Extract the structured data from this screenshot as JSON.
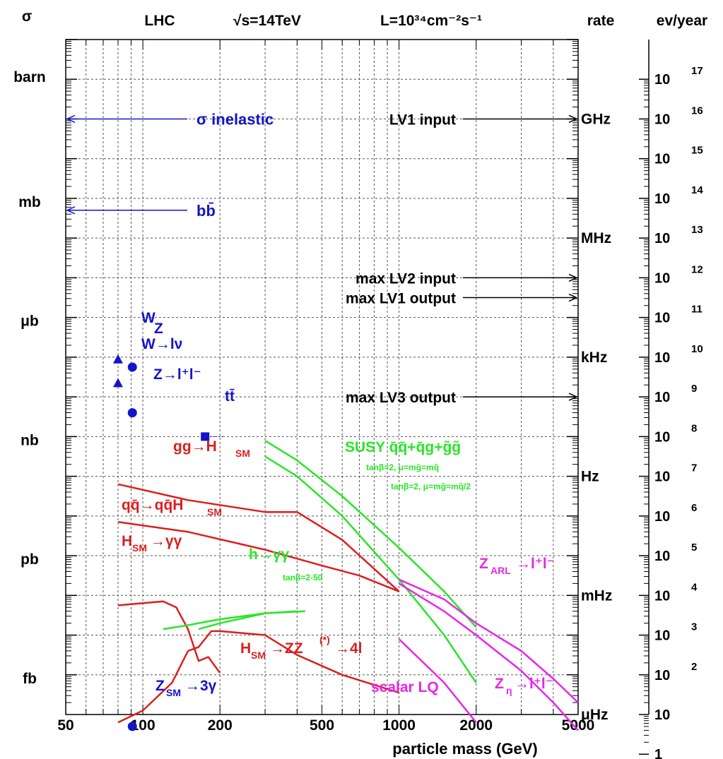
{
  "chart_data": {
    "type": "line",
    "x_scale": "log",
    "y_scale": "log",
    "xlim": [
      50,
      5000
    ],
    "ylim_decades": [
      -16,
      1
    ],
    "grid": true,
    "header": {
      "sigma": "σ",
      "lhc": "LHC",
      "sqrts": "√s=14TeV",
      "lumi": "L=10³⁴cm⁻²s⁻¹",
      "rate": "rate",
      "evyear": "ev/year"
    },
    "xlabel": "particle mass (GeV)",
    "x_ticks": [
      {
        "value": 50,
        "label": "50"
      },
      {
        "value": 100,
        "label": "100"
      },
      {
        "value": 200,
        "label": "200"
      },
      {
        "value": 500,
        "label": "500"
      },
      {
        "value": 1000,
        "label": "1000"
      },
      {
        "value": 2000,
        "label": "2000"
      },
      {
        "value": 5000,
        "label": "5000"
      }
    ],
    "y_left_labels": [
      {
        "decade": 0,
        "label": "barn"
      },
      {
        "decade": -3,
        "label": "mb"
      },
      {
        "decade": -6,
        "label": "μb"
      },
      {
        "decade": -9,
        "label": "nb"
      },
      {
        "decade": -12,
        "label": "pb"
      },
      {
        "decade": -15,
        "label": "fb"
      }
    ],
    "rate_labels": [
      {
        "decade": -1,
        "label": "GHz"
      },
      {
        "decade": -4,
        "label": "MHz"
      },
      {
        "decade": -7,
        "label": "kHz"
      },
      {
        "decade": -10,
        "label": "Hz"
      },
      {
        "decade": -13,
        "label": "mHz"
      },
      {
        "decade": -16,
        "label": "μHz"
      }
    ],
    "evyear_labels": [
      {
        "decade": 0,
        "mant": "10",
        "exp": "17"
      },
      {
        "decade": -1,
        "mant": "10",
        "exp": "16"
      },
      {
        "decade": -2,
        "mant": "10",
        "exp": "15"
      },
      {
        "decade": -3,
        "mant": "10",
        "exp": "14"
      },
      {
        "decade": -4,
        "mant": "10",
        "exp": "13"
      },
      {
        "decade": -5,
        "mant": "10",
        "exp": "12"
      },
      {
        "decade": -6,
        "mant": "10",
        "exp": "11"
      },
      {
        "decade": -7,
        "mant": "10",
        "exp": "10"
      },
      {
        "decade": -8,
        "mant": "10",
        "exp": "9"
      },
      {
        "decade": -9,
        "mant": "10",
        "exp": "8"
      },
      {
        "decade": -10,
        "mant": "10",
        "exp": "7"
      },
      {
        "decade": -11,
        "mant": "10",
        "exp": "6"
      },
      {
        "decade": -12,
        "mant": "10",
        "exp": "5"
      },
      {
        "decade": -13,
        "mant": "10",
        "exp": "4"
      },
      {
        "decade": -14,
        "mant": "10",
        "exp": "3"
      },
      {
        "decade": -15,
        "mant": "10",
        "exp": "2"
      },
      {
        "decade": -16,
        "mant": "10",
        "exp": ""
      },
      {
        "decade": -17,
        "mant": "1",
        "exp": ""
      }
    ],
    "trigger_arrows": [
      {
        "label": "LV1 input",
        "decade": -1
      },
      {
        "label": "max LV2 input",
        "decade": -5
      },
      {
        "label": "max LV1 output",
        "decade": -5.5
      },
      {
        "label": "max LV3 output",
        "decade": -8
      }
    ],
    "cross_section_arrows": [
      {
        "label": "σ inelastic",
        "decade": -1
      },
      {
        "label": "bb̄",
        "decade": -3.3
      }
    ],
    "colors": {
      "axis": "#000000",
      "grid": "#555555",
      "blue": "#1414c8",
      "red": "#dc1e1e",
      "green": "#28e628",
      "magenta": "#e628e6",
      "black": "#000000"
    },
    "markers": [
      {
        "name": "W",
        "shape": "triangle",
        "x": 80,
        "decade": -7.05
      },
      {
        "name": "Z",
        "shape": "circle",
        "x": 91,
        "decade": -7.25
      },
      {
        "name": "W→lν",
        "shape": "triangle",
        "x": 80,
        "decade": -7.65
      },
      {
        "name": "Z→l⁺l⁻",
        "shape": "circle",
        "x": 91,
        "decade": -8.4
      },
      {
        "name": "tt̄",
        "shape": "square",
        "x": 175,
        "decade": -9
      },
      {
        "name": "Z_SM→3γ",
        "shape": "circle",
        "x": 91,
        "decade": -16.3
      }
    ],
    "series": [
      {
        "name": "gg→H_SM",
        "color": "red",
        "points": [
          [
            80,
            -10.2
          ],
          [
            150,
            -10.6
          ],
          [
            300,
            -10.9
          ],
          [
            400,
            -10.9
          ],
          [
            600,
            -11.6
          ],
          [
            1000,
            -12.9
          ]
        ]
      },
      {
        "name": "qq̄→qq̄H_SM",
        "color": "red",
        "points": [
          [
            80,
            -11.15
          ],
          [
            150,
            -11.4
          ],
          [
            300,
            -11.85
          ],
          [
            500,
            -12.25
          ],
          [
            700,
            -12.5
          ],
          [
            1000,
            -12.9
          ]
        ]
      },
      {
        "name": "H_SM→γγ",
        "color": "red",
        "points": [
          [
            80,
            -13.25
          ],
          [
            120,
            -13.15
          ],
          [
            135,
            -13.3
          ],
          [
            150,
            -13.85
          ],
          [
            165,
            -14.65
          ],
          [
            180,
            -14.55
          ],
          [
            200,
            -14.95
          ]
        ]
      },
      {
        "name": "H_SM→ZZ→4l",
        "color": "red",
        "points": [
          [
            80,
            -16.2
          ],
          [
            100,
            -15.9
          ],
          [
            130,
            -15.2
          ],
          [
            150,
            -14.4
          ],
          [
            165,
            -14.3
          ],
          [
            185,
            -13.9
          ],
          [
            200,
            -13.9
          ],
          [
            300,
            -14
          ],
          [
            400,
            -14.5
          ],
          [
            600,
            -15.0
          ],
          [
            1000,
            -15.45
          ]
        ]
      },
      {
        "name": "SUSY-1",
        "color": "green",
        "points": [
          [
            300,
            -9.1
          ],
          [
            400,
            -9.6
          ],
          [
            600,
            -10.5
          ],
          [
            1000,
            -11.8
          ],
          [
            1500,
            -12.9
          ],
          [
            2000,
            -13.8
          ]
        ]
      },
      {
        "name": "SUSY-2",
        "color": "green",
        "points": [
          [
            300,
            -9.5
          ],
          [
            400,
            -10.0
          ],
          [
            600,
            -11.0
          ],
          [
            1000,
            -12.6
          ],
          [
            1500,
            -14.0
          ],
          [
            2000,
            -15.2
          ]
        ]
      },
      {
        "name": "h→γγ-1",
        "color": "green",
        "points": [
          [
            120,
            -13.85
          ],
          [
            150,
            -13.75
          ],
          [
            200,
            -13.6
          ],
          [
            300,
            -13.45
          ],
          [
            430,
            -13.4
          ]
        ]
      },
      {
        "name": "h→γγ-2",
        "color": "green",
        "points": [
          [
            165,
            -13.85
          ],
          [
            200,
            -13.7
          ],
          [
            300,
            -13.45
          ],
          [
            400,
            -13.4
          ]
        ]
      },
      {
        "name": "Z_ARL→l⁺l⁻",
        "color": "magenta",
        "points": [
          [
            1000,
            -12.6
          ],
          [
            1500,
            -13.1
          ],
          [
            2000,
            -13.7
          ],
          [
            3000,
            -14.4
          ],
          [
            4000,
            -15.1
          ],
          [
            5000,
            -15.7
          ]
        ]
      },
      {
        "name": "scalar LQ",
        "color": "magenta",
        "points": [
          [
            1000,
            -14.1
          ],
          [
            1500,
            -15.2
          ],
          [
            2000,
            -16.2
          ]
        ]
      },
      {
        "name": "Z_η→l⁺l⁻",
        "color": "magenta",
        "points": [
          [
            1000,
            -12.7
          ],
          [
            1500,
            -13.4
          ],
          [
            2000,
            -14.0
          ],
          [
            3000,
            -14.9
          ],
          [
            4000,
            -15.7
          ],
          [
            5000,
            -16.4
          ]
        ]
      }
    ],
    "annotations": {
      "W": "W",
      "Z": "Z",
      "wlnu": "W→lν",
      "zll": "Z→l⁺l⁻",
      "tt": "tt̄",
      "ggH_a": "gg→H",
      "ggH_b": "SM",
      "qqH_a": "qq̄→qq̄H",
      "qqH_b": "SM",
      "Hgg_a": "H",
      "Hgg_b": "SM",
      "Hgg_c": "→γγ",
      "hgg": "h→γγ",
      "hgg_tan": "tanβ=2-50",
      "HZZ_a": "H",
      "HZZ_b": "SM",
      "HZZ_c": "→ZZ",
      "HZZ_d": "(*)",
      "HZZ_e": "→4l",
      "susy": "SUSY q̄q̄+q̄g+g̃g̃",
      "susy_sub1": "tanβ=2, μ=mg̃=mq̃",
      "susy_sub2": "tanβ=2, μ=mg̃=mq̃/2",
      "zarl_a": "Z",
      "zarl_b": "ARL",
      "zarl_c": "→l⁺l⁻",
      "lq": "scalar LQ",
      "zeta_a": "Z",
      "zeta_b": "η",
      "zeta_c": "→l⁺l⁻",
      "z3g_a": "Z",
      "z3g_b": "SM",
      "z3g_c": "→3γ"
    }
  }
}
